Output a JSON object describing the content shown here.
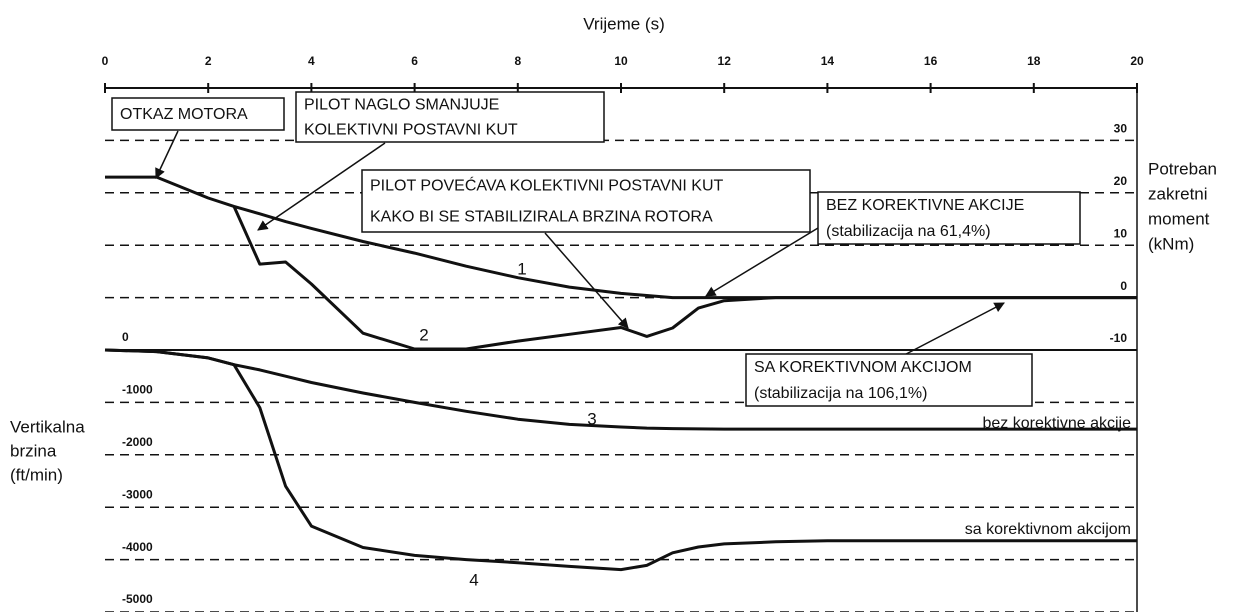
{
  "chart_data": {
    "type": "line",
    "xlabel": "Vrijeme (s)",
    "ylabel": [
      "Vertikalna",
      "brzina",
      "(ft/min)"
    ],
    "y2label": [
      "Potreban",
      "zakretni",
      "moment",
      "(kNm)"
    ],
    "x": [
      0,
      1,
      2,
      2.5,
      3,
      3.5,
      4,
      5,
      6,
      7,
      8,
      9,
      10,
      10.5,
      11,
      11.5,
      12,
      13,
      14,
      16,
      18,
      20
    ],
    "xlim": [
      0,
      20
    ],
    "xticks": [
      0,
      2,
      4,
      6,
      8,
      10,
      12,
      14,
      16,
      18,
      20
    ],
    "ylim": [
      -5000,
      5000
    ],
    "yticks": [
      0,
      -1000,
      -2000,
      -3000,
      -4000,
      -5000
    ],
    "y2lim": [
      -60,
      40
    ],
    "y2ticks": [
      30,
      20,
      10,
      0,
      -10
    ],
    "grid": true,
    "series": [
      {
        "name": "1",
        "color": "#111111",
        "axis": "y2",
        "values": [
          23,
          23,
          19,
          17.4,
          16,
          14.5,
          13.2,
          10.7,
          8.5,
          6,
          3.8,
          2,
          0.8,
          0.4,
          0,
          0,
          0,
          0,
          0,
          0,
          0,
          0
        ]
      },
      {
        "name": "2",
        "color": "#111111",
        "axis": "y2",
        "values": [
          null,
          null,
          null,
          17.4,
          6.4,
          6.8,
          2.6,
          -6.8,
          -9.8,
          -9.8,
          -8.3,
          -7,
          -5.7,
          -7.4,
          -5.8,
          -2,
          -0.6,
          0,
          0,
          0,
          0,
          0
        ]
      },
      {
        "name": "3",
        "color": "#111111",
        "axis": "y",
        "values": [
          0,
          -30,
          -150,
          -280,
          -380,
          -500,
          -620,
          -820,
          -1000,
          -1170,
          -1320,
          -1420,
          -1470,
          -1490,
          -1500,
          -1505,
          -1510,
          -1510,
          -1510,
          -1510,
          -1510,
          -1510
        ]
      },
      {
        "name": "4",
        "color": "#111111",
        "axis": "y",
        "values": [
          0,
          -30,
          -150,
          -280,
          -1100,
          -2600,
          -3360,
          -3770,
          -3920,
          -4000,
          -4060,
          -4130,
          -4190,
          -4110,
          -3870,
          -3760,
          -3700,
          -3660,
          -3640,
          -3640,
          -3640,
          -3640
        ]
      }
    ],
    "callouts": [
      [
        "OTKAZ MOTORA"
      ],
      [
        "PILOT NAGLO SMANJUJE",
        "KOLEKTIVNI POSTAVNI KUT"
      ],
      [
        "PILOT POVEĆAVA KOLEKTIVNI POSTAVNI KUT",
        "KAKO BI SE STABILIZIRALA BRZINA ROTORA"
      ],
      [
        "BEZ KOREKTIVNE AKCIJE",
        "(stabilizacija na 61,4%)"
      ],
      [
        "SA KOREKTIVNOM AKCIJOM",
        "(stabilizacija na 106,1%)"
      ]
    ],
    "notes": [
      "bez korektivne akcije",
      "sa korektivnom akcijom"
    ]
  }
}
